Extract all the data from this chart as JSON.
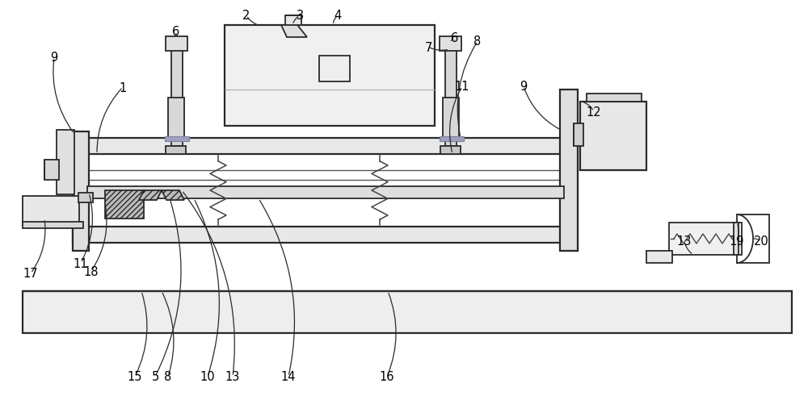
{
  "bg_color": "#ffffff",
  "lc": "#2a2a2a",
  "lc2": "#555555",
  "fc_light": "#f2f2f2",
  "fc_mid": "#e0e0e0",
  "fc_dark": "#c8c8c8",
  "purple_col": "#9090c0",
  "labels": [
    [
      "9",
      68,
      430
    ],
    [
      "1",
      152,
      393
    ],
    [
      "6",
      218,
      464
    ],
    [
      "2",
      305,
      484
    ],
    [
      "3",
      371,
      484
    ],
    [
      "4",
      418,
      484
    ],
    [
      "7",
      530,
      440
    ],
    [
      "6",
      562,
      454
    ],
    [
      "8",
      590,
      449
    ],
    [
      "11",
      572,
      392
    ],
    [
      "9",
      648,
      393
    ],
    [
      "12",
      735,
      362
    ],
    [
      "11",
      103,
      175
    ],
    [
      "18",
      115,
      165
    ],
    [
      "17",
      38,
      160
    ],
    [
      "15",
      168,
      32
    ],
    [
      "8",
      210,
      32
    ],
    [
      "5",
      193,
      32
    ],
    [
      "13",
      288,
      32
    ],
    [
      "10",
      258,
      32
    ],
    [
      "14",
      358,
      32
    ],
    [
      "16",
      480,
      32
    ],
    [
      "13",
      848,
      200
    ],
    [
      "19",
      912,
      200
    ],
    [
      "20",
      942,
      200
    ]
  ]
}
